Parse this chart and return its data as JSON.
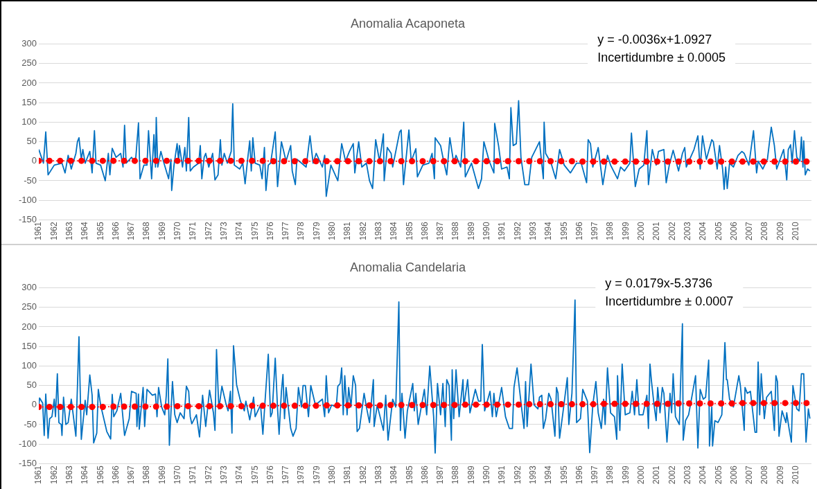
{
  "chart_data": [
    {
      "type": "line",
      "title": "Anomalia Acaponeta",
      "annotations": [
        "y = -0.0036x+1.0927",
        "Incertidumbre ± 0.0005"
      ],
      "xlim": [
        1961,
        2011
      ],
      "xticks": [
        1961,
        1962,
        1963,
        1964,
        1965,
        1966,
        1967,
        1968,
        1969,
        1970,
        1971,
        1972,
        1973,
        1974,
        1975,
        1976,
        1977,
        1978,
        1979,
        1980,
        1981,
        1982,
        1983,
        1984,
        1985,
        1986,
        1987,
        1988,
        1989,
        1990,
        1991,
        1992,
        1993,
        1994,
        1995,
        1996,
        1997,
        1998,
        1999,
        2000,
        2001,
        2002,
        2003,
        2004,
        2005,
        2006,
        2007,
        2008,
        2009,
        2010
      ],
      "ylim": [
        -150,
        300
      ],
      "yticks": [
        -150,
        -100,
        -50,
        0,
        50,
        100,
        150,
        200,
        250,
        300
      ],
      "grid": "y",
      "series": [
        {
          "color": "#0070c0",
          "marker": "none",
          "x": [
            1961.0,
            1961.3,
            1961.45,
            1961.6,
            1962.0,
            1962.5,
            1962.7,
            1962.9,
            1963.1,
            1963.4,
            1963.5,
            1963.6,
            1963.75,
            1963.85,
            1964.0,
            1964.3,
            1964.45,
            1964.6,
            1964.7,
            1965.0,
            1965.3,
            1965.5,
            1965.6,
            1965.75,
            1966.0,
            1966.3,
            1966.45,
            1966.55,
            1966.65,
            1967.0,
            1967.25,
            1967.45,
            1967.55,
            1967.8,
            1968.0,
            1968.1,
            1968.3,
            1968.45,
            1968.55,
            1968.6,
            1968.7,
            1968.9,
            1969.1,
            1969.4,
            1969.55,
            1969.6,
            1969.75,
            1969.95,
            1970.05,
            1970.1,
            1970.3,
            1970.45,
            1970.55,
            1970.7,
            1970.8,
            1971.0,
            1971.35,
            1971.45,
            1971.55,
            1971.7,
            1971.8,
            1972.0,
            1972.25,
            1972.4,
            1972.6,
            1972.75,
            1972.85,
            1973.0,
            1973.2,
            1973.45,
            1973.55,
            1973.65,
            1974.0,
            1974.2,
            1974.35,
            1974.5,
            1974.65,
            1974.75,
            1974.85,
            1975.0,
            1975.3,
            1975.45,
            1975.6,
            1975.7,
            1975.85,
            1976.0,
            1976.3,
            1976.45,
            1976.7,
            1977.0,
            1977.3,
            1977.4,
            1977.6,
            1977.7,
            1978.0,
            1978.3,
            1978.55,
            1978.75,
            1978.95,
            1979.35,
            1979.5,
            1979.6,
            1979.9,
            1980.35,
            1980.6,
            1980.85,
            1981.1,
            1981.35,
            1981.45,
            1981.7,
            1981.9,
            1982.2,
            1982.4,
            1982.6,
            1982.8,
            1983.05,
            1983.3,
            1983.35,
            1983.55,
            1983.8,
            1983.9,
            1984.35,
            1984.45,
            1984.6,
            1984.95,
            1985.1,
            1985.4,
            1985.5,
            1985.85,
            1986.25,
            1986.45,
            1986.6,
            1986.65,
            1987.0,
            1987.2,
            1987.4,
            1987.6,
            1987.85,
            1988.0,
            1988.3,
            1988.5,
            1988.6,
            1989.0,
            1989.45,
            1989.65,
            1989.8,
            1990.15,
            1990.45,
            1990.5,
            1990.75,
            1990.95,
            1991.3,
            1991.45,
            1991.55,
            1991.7,
            1991.9,
            1992.05,
            1992.2,
            1992.45,
            1992.7,
            1992.9,
            1993.4,
            1993.65,
            1993.7,
            1993.8,
            1994.15,
            1994.45,
            1994.7,
            1995.0,
            1995.4,
            1995.8,
            1996.1,
            1996.45,
            1996.55,
            1996.7,
            1996.85,
            1997.2,
            1997.5,
            1997.8,
            1998.0,
            1998.45,
            1998.65,
            1998.9,
            1999.25,
            1999.35,
            1999.6,
            1999.85,
            2000.15,
            2000.35,
            2000.45,
            2000.7,
            2000.95,
            2001.1,
            2001.45,
            2001.6,
            2001.8,
            2002.05,
            2002.4,
            2002.65,
            2002.8,
            2002.9,
            2003.4,
            2003.65,
            2003.8,
            2003.95,
            2004.2,
            2004.55,
            2004.65,
            2004.9,
            2005.05,
            2005.25,
            2005.35,
            2005.45,
            2005.55,
            2005.7,
            2005.95,
            2006.25,
            2006.5,
            2006.65,
            2006.95,
            2007.25,
            2007.45,
            2007.55,
            2007.85,
            2008.15,
            2008.4,
            2008.6,
            2008.75,
            2009.2,
            2009.4,
            2009.5,
            2009.65,
            2009.75,
            2009.9,
            2010.05,
            2010.25,
            2010.35,
            2010.45,
            2010.5,
            2010.6,
            2010.75,
            2010.9
          ],
          "values": [
            30,
            -5,
            75,
            -35,
            -10,
            -5,
            -30,
            15,
            -20,
            20,
            50,
            60,
            5,
            30,
            -5,
            25,
            -30,
            78,
            -5,
            -10,
            -50,
            20,
            -35,
            33,
            10,
            20,
            -15,
            92,
            -5,
            10,
            -5,
            98,
            -45,
            -10,
            -10,
            78,
            -45,
            68,
            -15,
            112,
            -15,
            25,
            -5,
            -45,
            5,
            -75,
            -10,
            45,
            0,
            40,
            -15,
            35,
            -25,
            112,
            -25,
            -15,
            -5,
            40,
            -45,
            10,
            20,
            -15,
            20,
            -48,
            -35,
            55,
            -10,
            20,
            -5,
            25,
            147,
            -10,
            -20,
            -5,
            -58,
            0,
            52,
            -25,
            60,
            -5,
            -10,
            -45,
            35,
            -75,
            -10,
            -5,
            75,
            -65,
            50,
            0,
            40,
            -25,
            -60,
            5,
            -5,
            -15,
            65,
            -5,
            20,
            -15,
            15,
            -90,
            -10,
            -50,
            45,
            0,
            25,
            45,
            -30,
            50,
            -15,
            -5,
            -50,
            -70,
            55,
            0,
            70,
            -50,
            35,
            20,
            -15,
            75,
            80,
            -60,
            80,
            0,
            32,
            -40,
            -10,
            -5,
            20,
            -45,
            60,
            40,
            0,
            -35,
            60,
            -5,
            15,
            -15,
            100,
            -40,
            -5,
            -70,
            -45,
            50,
            0,
            -30,
            97,
            40,
            -20,
            -15,
            -45,
            137,
            40,
            45,
            155,
            10,
            -60,
            -60,
            10,
            50,
            -45,
            100,
            20,
            -5,
            -45,
            30,
            -10,
            -30,
            -5,
            -5,
            -55,
            55,
            45,
            -15,
            35,
            -60,
            15,
            -10,
            -45,
            -15,
            -25,
            -5,
            72,
            -65,
            -20,
            -10,
            78,
            -60,
            30,
            -10,
            25,
            30,
            -55,
            -10,
            28,
            -25,
            20,
            35,
            -15,
            30,
            65,
            -20,
            65,
            5,
            55,
            50,
            -20,
            40,
            -20,
            -72,
            -15,
            -70,
            -5,
            -15,
            15,
            25,
            20,
            -10,
            78,
            -30,
            0,
            -20,
            5,
            87,
            40,
            -20,
            30,
            -48,
            30,
            42,
            -5,
            78,
            10,
            0,
            62,
            -15,
            52,
            -35,
            -20,
            -25
          ]
        },
        {
          "type": "line",
          "color": "#ff0000",
          "marker": "circle",
          "line_style": "dotted",
          "x": [
            1961,
            1961.69,
            1962.38,
            1963.07,
            1963.76,
            1964.45,
            1965.14,
            1965.83,
            1966.52,
            1967.21,
            1967.9,
            1968.59,
            1969.28,
            1969.97,
            1970.66,
            1971.35,
            1972.04,
            1972.73,
            1973.42,
            1974.11,
            1974.8,
            1975.49,
            1976.18,
            1976.87,
            1977.56,
            1978.25,
            1978.94,
            1979.63,
            1980.32,
            1981.01,
            1981.7,
            1982.39,
            1983.08,
            1983.77,
            1984.46,
            1985.15,
            1985.84,
            1986.53,
            1987.22,
            1987.91,
            1988.6,
            1989.29,
            1989.98,
            1990.67,
            1991.36,
            1992.05,
            1992.74,
            1993.43,
            1994.12,
            1994.81,
            1995.5,
            1996.19,
            1996.88,
            1997.57,
            1998.26,
            1998.95,
            1999.64,
            2000.33,
            2001.02,
            2001.71,
            2002.4,
            2003.09,
            2003.78,
            2004.47,
            2005.16,
            2005.85,
            2006.54,
            2007.23,
            2007.92,
            2008.61,
            2009.3,
            2009.99,
            2010.68
          ],
          "values": [
            1,
            1,
            1,
            1,
            1,
            1,
            1,
            1,
            1,
            1,
            1,
            1,
            1,
            1,
            1,
            1,
            1,
            1,
            1,
            1,
            1,
            1,
            0,
            0,
            0,
            0,
            0,
            0,
            0,
            0,
            0,
            0,
            0,
            0,
            0,
            0,
            0,
            0,
            0,
            0,
            0,
            0,
            0,
            0,
            0,
            0,
            0,
            0,
            0,
            0,
            0,
            -1,
            -1,
            -1,
            -1,
            -1,
            -1,
            -1,
            -1,
            -1,
            -1,
            -1,
            -1,
            -1,
            -1,
            -1,
            -1,
            -1,
            -1,
            -1,
            -1,
            -1,
            -1
          ]
        }
      ]
    },
    {
      "type": "line",
      "title": "Anomalia Candelaria",
      "annotations": [
        "y = 0.0179x-5.3736",
        "Incertidumbre ± 0.0007"
      ],
      "xlim": [
        1961,
        2011
      ],
      "xticks": [
        1961,
        1962,
        1963,
        1964,
        1965,
        1966,
        1967,
        1968,
        1969,
        1970,
        1971,
        1972,
        1973,
        1974,
        1975,
        1976,
        1977,
        1978,
        1979,
        1980,
        1981,
        1982,
        1983,
        1984,
        1985,
        1986,
        1987,
        1988,
        1989,
        1990,
        1991,
        1992,
        1993,
        1994,
        1995,
        1996,
        1997,
        1998,
        1999,
        2000,
        2001,
        2002,
        2003,
        2004,
        2005,
        2006,
        2007,
        2008,
        2009,
        2010
      ],
      "ylim": [
        -150,
        300
      ],
      "yticks": [
        -150,
        -100,
        -50,
        0,
        50,
        100,
        150,
        200,
        250,
        300
      ],
      "grid": "y",
      "series": [
        {
          "color": "#0070c0",
          "marker": "none",
          "x": [
            1961.0,
            1961.05,
            1961.25,
            1961.35,
            1961.45,
            1961.6,
            1961.7,
            1961.85,
            1962.0,
            1962.08,
            1962.2,
            1962.3,
            1962.45,
            1962.5,
            1962.6,
            1962.75,
            1962.9,
            1963.1,
            1963.4,
            1963.6,
            1963.75,
            1964.0,
            1964.1,
            1964.3,
            1964.45,
            1964.55,
            1964.75,
            1964.85,
            1965.0,
            1965.4,
            1965.65,
            1965.75,
            1965.85,
            1966.05,
            1966.3,
            1966.55,
            1966.85,
            1967.0,
            1967.3,
            1967.35,
            1967.45,
            1967.5,
            1967.75,
            1967.85,
            1968.0,
            1968.35,
            1968.55,
            1968.65,
            1968.75,
            1968.95,
            1969.15,
            1969.25,
            1969.35,
            1969.45,
            1969.65,
            1969.8,
            1969.95,
            1970.15,
            1970.4,
            1970.55,
            1970.7,
            1970.8,
            1970.9,
            1971.2,
            1971.4,
            1971.6,
            1971.8,
            1972.05,
            1972.3,
            1972.4,
            1972.5,
            1972.65,
            1972.85,
            1973.1,
            1973.25,
            1973.4,
            1973.5,
            1973.6,
            1973.8,
            1974.05,
            1974.3,
            1974.4,
            1974.65,
            1974.9,
            1975.0,
            1975.35,
            1975.5,
            1975.65,
            1975.85,
            1976.0,
            1976.1,
            1976.3,
            1976.45,
            1976.55,
            1976.7,
            1976.8,
            1976.9,
            1977.0,
            1977.3,
            1977.45,
            1977.65,
            1977.8,
            1978.0,
            1978.1,
            1978.25,
            1978.45,
            1978.6,
            1978.9,
            1979.35,
            1979.5,
            1979.6,
            1979.75,
            1979.95,
            1980.25,
            1980.35,
            1980.5,
            1980.6,
            1980.7,
            1980.8,
            1980.95,
            1981.05,
            1981.2,
            1981.35,
            1981.5,
            1981.6,
            1981.75,
            1982.05,
            1982.2,
            1982.4,
            1982.65,
            1982.7,
            1982.9,
            1983.3,
            1983.45,
            1983.6,
            1983.9,
            1984.1,
            1984.3,
            1984.4,
            1984.5,
            1984.7,
            1984.85,
            1985.2,
            1985.3,
            1985.4,
            1985.55,
            1985.95,
            1986.1,
            1986.3,
            1986.55,
            1986.65,
            1986.8,
            1987.0,
            1987.15,
            1987.3,
            1987.4,
            1987.55,
            1987.7,
            1987.75,
            1987.85,
            1988.0,
            1988.2,
            1988.45,
            1988.5,
            1988.75,
            1988.9,
            1989.25,
            1989.45,
            1989.6,
            1989.7,
            1989.85,
            1990.2,
            1990.35,
            1990.45,
            1990.6,
            1990.95,
            1991.2,
            1991.45,
            1991.65,
            1991.75,
            1991.95,
            1992.25,
            1992.4,
            1992.5,
            1992.6,
            1992.85,
            1993.05,
            1993.3,
            1993.4,
            1993.55,
            1993.65,
            1993.8,
            1994.0,
            1994.15,
            1994.4,
            1994.5,
            1994.6,
            1994.7,
            1994.9,
            1995.2,
            1995.3,
            1995.5,
            1995.65,
            1995.7,
            1995.8,
            1996.05,
            1996.2,
            1996.5,
            1996.65,
            1996.85,
            1997.05,
            1997.2,
            1997.4,
            1997.55,
            1997.65,
            1997.8,
            1998.0,
            1998.25,
            1998.4,
            1998.45,
            1998.6,
            1998.75,
            1998.95,
            1999.25,
            1999.4,
            1999.55,
            1999.7,
            1999.85,
            2000.1,
            2000.35,
            2000.45,
            2000.55,
            2000.65,
            2000.8,
            2000.95,
            2001.05,
            2001.2,
            2001.35,
            2001.45,
            2001.65,
            2001.85,
            2001.95,
            2002.05,
            2002.2,
            2002.45,
            2002.65,
            2002.7,
            2002.85,
            2003.05,
            2003.3,
            2003.5,
            2003.65,
            2003.8,
            2004.0,
            2004.15,
            2004.35,
            2004.4,
            2004.55,
            2004.6,
            2004.75,
            2004.95,
            2005.2,
            2005.4,
            2005.5,
            2005.55,
            2005.7,
            2005.95,
            2006.3,
            2006.4,
            2006.65,
            2006.7,
            2006.85,
            2007.05,
            2007.35,
            2007.45,
            2007.55,
            2007.65,
            2007.75,
            2007.95,
            2008.1,
            2008.4,
            2008.6,
            2008.7,
            2008.8,
            2008.9,
            2009.1,
            2009.35,
            2009.4,
            2009.55,
            2009.7,
            2009.8,
            2010.05,
            2010.2,
            2010.35,
            2010.5,
            2010.65,
            2010.8,
            2010.9
          ],
          "values": [
            0,
            18,
            5,
            -78,
            28,
            -85,
            -35,
            -30,
            15,
            -30,
            80,
            -45,
            -50,
            -78,
            20,
            -50,
            -45,
            15,
            -80,
            175,
            -88,
            12,
            -25,
            77,
            25,
            -97,
            -72,
            40,
            0,
            -68,
            -87,
            27,
            -30,
            -15,
            30,
            -78,
            -35,
            35,
            30,
            -55,
            28,
            -62,
            45,
            -55,
            40,
            25,
            28,
            -30,
            45,
            -5,
            -25,
            25,
            118,
            -103,
            60,
            -25,
            -45,
            -20,
            -35,
            48,
            35,
            -30,
            -48,
            -25,
            -82,
            25,
            -55,
            38,
            -20,
            -65,
            142,
            -10,
            48,
            5,
            -15,
            35,
            -72,
            152,
            52,
            10,
            -15,
            10,
            -38,
            20,
            -30,
            0,
            -75,
            15,
            130,
            -30,
            -20,
            120,
            -10,
            -75,
            35,
            78,
            -35,
            45,
            -60,
            -80,
            -60,
            45,
            -5,
            50,
            50,
            -30,
            50,
            0,
            15,
            -30,
            75,
            -20,
            0,
            -5,
            48,
            55,
            95,
            -25,
            75,
            -25,
            45,
            -5,
            75,
            50,
            -68,
            -60,
            30,
            -5,
            -45,
            65,
            -55,
            0,
            -65,
            25,
            -90,
            15,
            -5,
            264,
            -65,
            30,
            -85,
            -15,
            55,
            -15,
            30,
            -50,
            40,
            -25,
            100,
            -30,
            -123,
            55,
            -25,
            55,
            -55,
            65,
            50,
            -90,
            90,
            -35,
            90,
            -30,
            65,
            -5,
            65,
            -20,
            40,
            10,
            10,
            155,
            -15,
            35,
            -30,
            30,
            -30,
            45,
            -30,
            -60,
            -60,
            45,
            95,
            -10,
            -60,
            60,
            -55,
            105,
            0,
            -10,
            20,
            25,
            -60,
            -35,
            30,
            15,
            -80,
            45,
            30,
            -85,
            -25,
            70,
            -50,
            30,
            205,
            269,
            -45,
            -35,
            40,
            10,
            -122,
            0,
            60,
            -20,
            -60,
            15,
            -50,
            95,
            -20,
            -30,
            -88,
            75,
            -65,
            105,
            -25,
            -20,
            35,
            -25,
            65,
            -25,
            -25,
            25,
            -60,
            105,
            60,
            5,
            -40,
            45,
            -20,
            45,
            30,
            -95,
            30,
            -20,
            80,
            -30,
            -50,
            208,
            -90,
            -40,
            -25,
            30,
            75,
            -110,
            40,
            15,
            20,
            115,
            -105,
            -5,
            -105,
            -40,
            -45,
            -25,
            160,
            65,
            65,
            15,
            -5,
            75,
            50,
            -65,
            45,
            30,
            35,
            -70,
            -70,
            110,
            -25,
            80,
            -35,
            20,
            35,
            -65,
            75,
            60,
            -80,
            -15,
            -45,
            -20,
            -60,
            -95,
            50,
            -10,
            -15,
            80,
            80,
            -95,
            -10,
            -35
          ]
        },
        {
          "type": "line",
          "color": "#ff0000",
          "marker": "circle",
          "line_style": "dotted",
          "x": [
            1961,
            1961.69,
            1962.38,
            1963.07,
            1963.76,
            1964.45,
            1965.14,
            1965.83,
            1966.52,
            1967.21,
            1967.9,
            1968.59,
            1969.28,
            1969.97,
            1970.66,
            1971.35,
            1972.04,
            1972.73,
            1973.42,
            1974.11,
            1974.8,
            1975.49,
            1976.18,
            1976.87,
            1977.56,
            1978.25,
            1978.94,
            1979.63,
            1980.32,
            1981.01,
            1981.7,
            1982.39,
            1983.08,
            1983.77,
            1984.46,
            1985.15,
            1985.84,
            1986.53,
            1987.22,
            1987.91,
            1988.6,
            1989.29,
            1989.98,
            1990.67,
            1991.36,
            1992.05,
            1992.74,
            1993.43,
            1994.12,
            1994.81,
            1995.5,
            1996.19,
            1996.88,
            1997.57,
            1998.26,
            1998.95,
            1999.64,
            2000.33,
            2001.02,
            2001.71,
            2002.4,
            2003.09,
            2003.78,
            2004.47,
            2005.16,
            2005.85,
            2006.54,
            2007.23,
            2007.92,
            2008.61,
            2009.3,
            2009.99,
            2010.68
          ],
          "values": [
            -5,
            -5,
            -5,
            -5,
            -5,
            -5,
            -5,
            -4,
            -4,
            -4,
            -4,
            -4,
            -4,
            -3,
            -3,
            -3,
            -3,
            -3,
            -3,
            -3,
            -2,
            -2,
            -2,
            -2,
            -2,
            -2,
            -2,
            -1,
            -1,
            -1,
            -1,
            -1,
            -1,
            0,
            0,
            0,
            0,
            0,
            0,
            0,
            1,
            1,
            1,
            1,
            1,
            1,
            2,
            2,
            2,
            2,
            2,
            2,
            2,
            3,
            3,
            3,
            3,
            3,
            3,
            3,
            4,
            4,
            4,
            4,
            4,
            4,
            5,
            5,
            5,
            5,
            5,
            5,
            5
          ]
        }
      ]
    }
  ]
}
